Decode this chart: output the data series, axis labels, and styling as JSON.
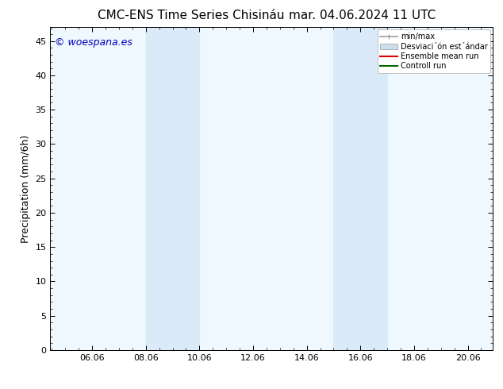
{
  "title_left": "CMC-ENS Time Series Chisináu",
  "title_right": "mar. 04.06.2024 11 UTC",
  "ylabel": "Precipitation (mm/6h)",
  "watermark": "© woespana.es",
  "xlim_min": 4.5,
  "xlim_max": 21.0,
  "ylim_min": 0,
  "ylim_max": 47,
  "xtick_labels": [
    "06.06",
    "08.06",
    "10.06",
    "12.06",
    "14.06",
    "16.06",
    "18.06",
    "20.06"
  ],
  "xtick_positions": [
    6.06,
    8.06,
    10.06,
    12.06,
    14.06,
    16.06,
    18.06,
    20.06
  ],
  "ytick_labels": [
    "0",
    "5",
    "10",
    "15",
    "20",
    "25",
    "30",
    "35",
    "40",
    "45"
  ],
  "ytick_positions": [
    0,
    5,
    10,
    15,
    20,
    25,
    30,
    35,
    40,
    45
  ],
  "shaded_regions": [
    {
      "x_start": 8.06,
      "x_end": 10.06
    },
    {
      "x_start": 15.06,
      "x_end": 17.06
    }
  ],
  "shade_color": "#daeaf8",
  "background_color": "#ffffff",
  "plot_bg_color": "#f0f8ff",
  "legend_entries": [
    {
      "label": "min/max",
      "color": "#999999",
      "lw": 1.2,
      "style": "solid"
    },
    {
      "label": "Desviaci´ón est´ándar",
      "color": "#ccddee",
      "lw": 8,
      "style": "solid"
    },
    {
      "label": "Ensemble mean run",
      "color": "#dd0000",
      "lw": 1.5,
      "style": "solid"
    },
    {
      "label": "Controll run",
      "color": "#006600",
      "lw": 1.5,
      "style": "solid"
    }
  ],
  "title_fontsize": 11,
  "axis_fontsize": 9,
  "tick_fontsize": 8,
  "legend_fontsize": 7,
  "watermark_color": "#0000bb",
  "watermark_fontsize": 9
}
